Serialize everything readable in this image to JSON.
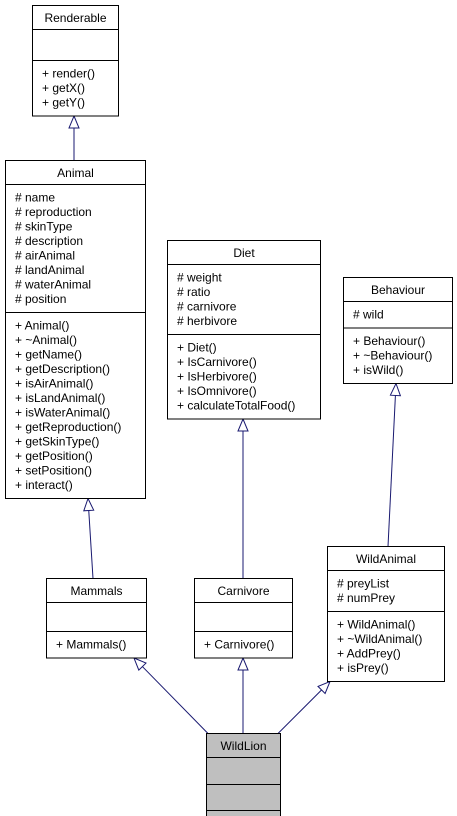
{
  "classes": {
    "renderable": {
      "name": "Renderable",
      "attributes": [],
      "methods": [
        "+ render()",
        "+ getX()",
        "+ getY()"
      ]
    },
    "animal": {
      "name": "Animal",
      "attributes": [
        "# name",
        "# reproduction",
        "# skinType",
        "# description",
        "# airAnimal",
        "# landAnimal",
        "# waterAnimal",
        "# position"
      ],
      "methods": [
        "+ Animal()",
        "+ ~Animal()",
        "+ getName()",
        "+ getDescription()",
        "+ isAirAnimal()",
        "+ isLandAnimal()",
        "+ isWaterAnimal()",
        "+ getReproduction()",
        "+ getSkinType()",
        "+ getPosition()",
        "+ setPosition()",
        "+ interact()"
      ]
    },
    "diet": {
      "name": "Diet",
      "attributes": [
        "# weight",
        "# ratio",
        "# carnivore",
        "# herbivore"
      ],
      "methods": [
        "+ Diet()",
        "+ IsCarnivore()",
        "+ IsHerbivore()",
        "+ IsOmnivore()",
        "+ calculateTotalFood()"
      ]
    },
    "behaviour": {
      "name": "Behaviour",
      "attributes": [
        "# wild"
      ],
      "methods": [
        "+ Behaviour()",
        "+ ~Behaviour()",
        "+ isWild()"
      ]
    },
    "mammals": {
      "name": "Mammals",
      "attributes": [],
      "methods": [
        "+ Mammals()"
      ]
    },
    "carnivore": {
      "name": "Carnivore",
      "attributes": [],
      "methods": [
        "+ Carnivore()"
      ]
    },
    "wildanimal": {
      "name": "WildAnimal",
      "attributes": [
        "# preyList",
        "# numPrey"
      ],
      "methods": [
        "+ WildAnimal()",
        "+ ~WildAnimal()",
        "+ AddPrey()",
        "+ isPrey()"
      ]
    },
    "wildlion": {
      "name": "WildLion",
      "attributes": [],
      "methods": []
    }
  },
  "inheritance": [
    {
      "child": "animal",
      "parent": "renderable"
    },
    {
      "child": "mammals",
      "parent": "animal"
    },
    {
      "child": "carnivore",
      "parent": "diet"
    },
    {
      "child": "wildanimal",
      "parent": "behaviour"
    },
    {
      "child": "wildlion",
      "parent": "mammals"
    },
    {
      "child": "wildlion",
      "parent": "carnivore"
    },
    {
      "child": "wildlion",
      "parent": "wildanimal"
    }
  ],
  "colors": {
    "edge": "#191970",
    "highlight_fill": "#bfbfbf",
    "box_fill": "#ffffff",
    "border": "#000000"
  }
}
